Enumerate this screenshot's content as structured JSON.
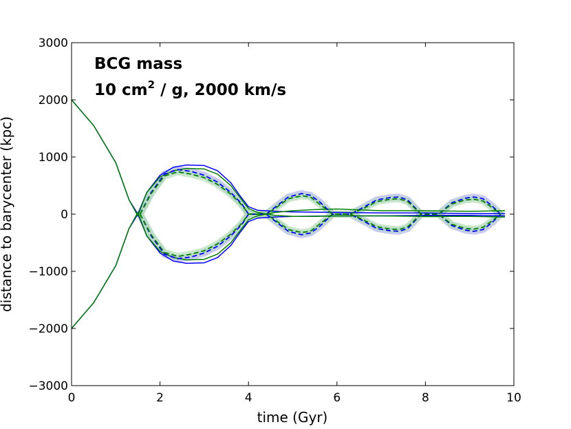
{
  "chart_data": {
    "type": "line",
    "title": "BCG mass",
    "subtitle_prefix": "10 cm",
    "subtitle_superscript": "2",
    "subtitle_suffix": " / g, 2000 km/s",
    "xlabel": "time (Gyr)",
    "ylabel": "distance to barycenter (kpc)",
    "xlim": [
      0,
      10
    ],
    "ylim": [
      -3000,
      3000
    ],
    "xticks": [
      0,
      2,
      4,
      6,
      8,
      10
    ],
    "yticks": [
      -3000,
      -2000,
      -1000,
      0,
      1000,
      2000,
      3000
    ],
    "xtick_labels": [
      "0",
      "2",
      "4",
      "6",
      "8",
      "10"
    ],
    "ytick_labels": [
      "−3000",
      "−2000",
      "−1000",
      "0",
      "1000",
      "2000",
      "3000"
    ],
    "grid": false,
    "colors": {
      "blue": "#0000ff",
      "green": "#007f00",
      "blue_band": "#b4b4f0",
      "green_band": "#b4deb4"
    },
    "series": [
      {
        "name": "blue-solid-upper",
        "color": "#0000ff",
        "style": "solid",
        "x": [
          0,
          0.5,
          1.0,
          1.3,
          1.5,
          1.7,
          2.0,
          2.3,
          2.6,
          3.0,
          3.3,
          3.6,
          3.8,
          4.0,
          4.2,
          4.6,
          5.0,
          6.0,
          7.0,
          8.0,
          9.0,
          9.8
        ],
        "y": [
          2000,
          1550,
          900,
          250,
          0,
          380,
          680,
          820,
          860,
          850,
          760,
          550,
          330,
          130,
          70,
          50,
          40,
          30,
          20,
          20,
          10,
          10
        ]
      },
      {
        "name": "blue-solid-lower",
        "color": "#0000ff",
        "style": "solid",
        "x": [
          0,
          0.5,
          1.0,
          1.3,
          1.5,
          1.7,
          2.0,
          2.3,
          2.6,
          3.0,
          3.3,
          3.6,
          3.8,
          4.0,
          4.2,
          4.6,
          5.0,
          6.0,
          7.0,
          8.0,
          9.0,
          9.8
        ],
        "y": [
          -2000,
          -1550,
          -900,
          -250,
          0,
          -380,
          -680,
          -820,
          -860,
          -850,
          -760,
          -550,
          -330,
          -130,
          -70,
          -50,
          -40,
          -30,
          -30,
          -20,
          -20,
          -30
        ]
      },
      {
        "name": "green-solid-upper",
        "color": "#007f00",
        "style": "solid",
        "x": [
          0,
          0.5,
          1.0,
          1.3,
          1.5,
          1.7,
          2.0,
          2.3,
          2.6,
          3.0,
          3.3,
          3.6,
          3.8,
          4.0,
          4.2,
          4.6,
          5.0,
          5.5,
          6.0,
          7.0,
          8.0,
          9.0,
          9.8
        ],
        "y": [
          2000,
          1550,
          900,
          250,
          -30,
          380,
          650,
          760,
          800,
          790,
          700,
          500,
          300,
          100,
          30,
          -20,
          -40,
          -40,
          -30,
          -30,
          -40,
          -40,
          -50
        ]
      },
      {
        "name": "green-solid-lower",
        "color": "#007f00",
        "style": "solid",
        "x": [
          0,
          0.5,
          1.0,
          1.3,
          1.5,
          1.7,
          2.0,
          2.3,
          2.6,
          3.0,
          3.3,
          3.6,
          3.8,
          4.0,
          4.2,
          4.6,
          5.0,
          5.5,
          6.0,
          7.0,
          8.0,
          9.0,
          9.8
        ],
        "y": [
          -2000,
          -1550,
          -900,
          -250,
          30,
          -380,
          -650,
          -760,
          -800,
          -790,
          -700,
          -500,
          -300,
          -100,
          -30,
          30,
          60,
          80,
          90,
          60,
          60,
          50,
          60
        ]
      },
      {
        "name": "blue-dashed-upper",
        "color": "#0000ff",
        "style": "dashed",
        "x": [
          1.55,
          1.8,
          2.1,
          2.4,
          2.7,
          3.0,
          3.3,
          3.6,
          3.85,
          4.0,
          4.4,
          4.6,
          4.9,
          5.2,
          5.4,
          5.6,
          5.9,
          6.3,
          6.6,
          6.9,
          7.2,
          7.4,
          7.6,
          7.9,
          8.3,
          8.6,
          8.9,
          9.1,
          9.3,
          9.5,
          9.7
        ],
        "y": [
          0,
          380,
          700,
          780,
          750,
          680,
          560,
          380,
          180,
          0,
          0,
          120,
          300,
          360,
          330,
          220,
          0,
          0,
          120,
          250,
          290,
          300,
          250,
          0,
          0,
          200,
          280,
          300,
          270,
          150,
          0
        ]
      },
      {
        "name": "blue-dashed-lower",
        "color": "#0000ff",
        "style": "dashed",
        "x": [
          1.55,
          1.8,
          2.1,
          2.4,
          2.7,
          3.0,
          3.3,
          3.6,
          3.85,
          4.0,
          4.4,
          4.6,
          4.9,
          5.2,
          5.4,
          5.6,
          5.9,
          6.3,
          6.6,
          6.9,
          7.2,
          7.4,
          7.6,
          7.9,
          8.3,
          8.6,
          8.9,
          9.1,
          9.3,
          9.5,
          9.7
        ],
        "y": [
          0,
          -380,
          -700,
          -780,
          -750,
          -680,
          -560,
          -380,
          -180,
          0,
          0,
          -120,
          -300,
          -360,
          -330,
          -220,
          0,
          0,
          -120,
          -250,
          -290,
          -300,
          -250,
          0,
          0,
          -200,
          -280,
          -300,
          -270,
          -150,
          0
        ]
      },
      {
        "name": "green-dashed-upper",
        "color": "#007f00",
        "style": "dashed",
        "x": [
          1.55,
          1.8,
          2.1,
          2.4,
          2.7,
          3.0,
          3.3,
          3.6,
          3.85,
          4.0,
          4.4,
          4.6,
          4.9,
          5.2,
          5.4,
          5.6,
          5.9,
          6.3,
          6.6,
          6.9,
          7.2,
          7.4,
          7.6,
          7.9,
          8.3,
          8.6,
          8.9,
          9.1,
          9.3,
          9.5,
          9.7
        ],
        "y": [
          0,
          360,
          670,
          740,
          700,
          640,
          520,
          350,
          160,
          0,
          0,
          100,
          270,
          320,
          300,
          180,
          0,
          0,
          100,
          220,
          260,
          270,
          220,
          0,
          0,
          180,
          250,
          260,
          230,
          120,
          0
        ]
      },
      {
        "name": "green-dashed-lower",
        "color": "#007f00",
        "style": "dashed",
        "x": [
          1.55,
          1.8,
          2.1,
          2.4,
          2.7,
          3.0,
          3.3,
          3.6,
          3.85,
          4.0,
          4.4,
          4.6,
          4.9,
          5.2,
          5.4,
          5.6,
          5.9,
          6.3,
          6.6,
          6.9,
          7.2,
          7.4,
          7.6,
          7.9,
          8.3,
          8.6,
          8.9,
          9.1,
          9.3,
          9.5,
          9.7
        ],
        "y": [
          0,
          -360,
          -670,
          -740,
          -700,
          -640,
          -520,
          -350,
          -160,
          0,
          0,
          -100,
          -270,
          -320,
          -300,
          -180,
          0,
          0,
          -100,
          -220,
          -260,
          -270,
          -220,
          0,
          0,
          -180,
          -250,
          -260,
          -230,
          -120,
          0
        ]
      }
    ]
  }
}
